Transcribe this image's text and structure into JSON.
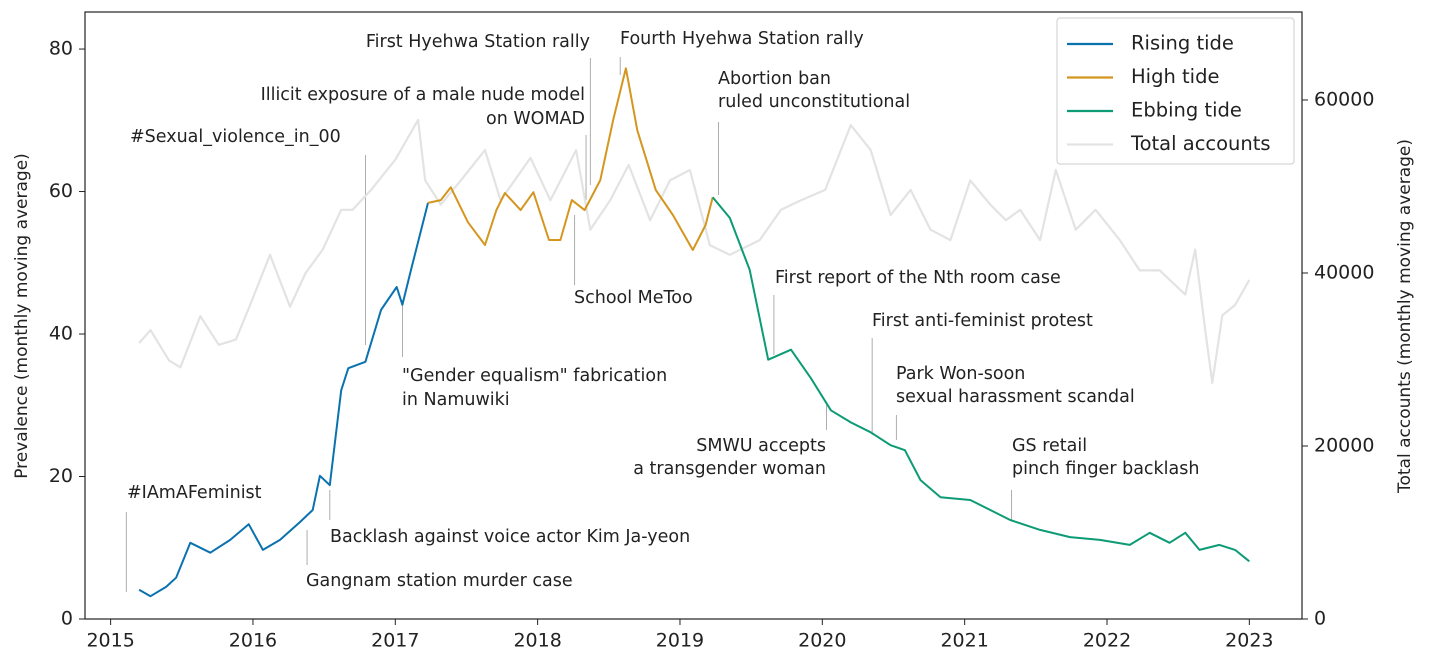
{
  "chart_data": {
    "type": "line",
    "ylabel": "Prevalence (monthly moving average)",
    "y2label": "Total accounts (monthly moving average)",
    "xlim": [
      2014.82,
      2023.37
    ],
    "xticks": [
      2015,
      2016,
      2017,
      2018,
      2019,
      2020,
      2021,
      2022,
      2023
    ],
    "ylim": [
      0,
      85.2
    ],
    "yticks": [
      0,
      20,
      40,
      60,
      80
    ],
    "y2lim": [
      0,
      70170
    ],
    "y2ticks": [
      0,
      20000,
      40000,
      60000
    ],
    "legend": "upper right",
    "grid": false,
    "series": [
      {
        "name": "Total accounts",
        "color": "#e3e3e3",
        "axis": "y2",
        "x": [
          2015.2,
          2015.28,
          2015.41,
          2015.49,
          2015.63,
          2015.76,
          2015.88,
          2015.98,
          2016.12,
          2016.26,
          2016.37,
          2016.49,
          2016.62,
          2016.7,
          2016.83,
          2017.0,
          2017.16,
          2017.21,
          2017.32,
          2017.46,
          2017.63,
          2017.74,
          2017.95,
          2018.09,
          2018.27,
          2018.37,
          2018.51,
          2018.64,
          2018.79,
          2018.93,
          2019.07,
          2019.21,
          2019.35,
          2019.56,
          2019.71,
          2019.85,
          2020.02,
          2020.2,
          2020.34,
          2020.48,
          2020.62,
          2020.76,
          2020.9,
          2021.04,
          2021.18,
          2021.29,
          2021.39,
          2021.53,
          2021.64,
          2021.78,
          2021.92,
          2022.09,
          2022.23,
          2022.37,
          2022.55,
          2022.62,
          2022.69,
          2022.74,
          2022.81,
          2022.9,
          2023.0
        ],
        "values": [
          31900,
          33400,
          29900,
          29100,
          35000,
          31700,
          32300,
          36300,
          42100,
          36100,
          40000,
          42700,
          47300,
          47300,
          49600,
          53100,
          57700,
          50700,
          47900,
          50700,
          54200,
          48400,
          53300,
          48400,
          54200,
          45000,
          48400,
          52500,
          46100,
          50700,
          51900,
          43200,
          42100,
          43800,
          47300,
          48400,
          49600,
          57100,
          54200,
          46700,
          49600,
          45000,
          43800,
          50700,
          47900,
          46100,
          47300,
          43800,
          51900,
          45000,
          47300,
          43800,
          40300,
          40300,
          37500,
          42700,
          33400,
          27300,
          35100,
          36300,
          39200
        ]
      },
      {
        "name": "Rising tide",
        "color": "#0b72b0",
        "x": [
          2015.2,
          2015.28,
          2015.39,
          2015.46,
          2015.56,
          2015.7,
          2015.84,
          2015.97,
          2016.07,
          2016.19,
          2016.33,
          2016.42,
          2016.47,
          2016.54,
          2016.62,
          2016.67,
          2016.79,
          2016.9,
          2017.01,
          2017.05,
          2017.11,
          2017.23
        ],
        "values": [
          4.1,
          3.2,
          4.5,
          5.8,
          10.7,
          9.3,
          11.1,
          13.3,
          9.7,
          11.1,
          13.6,
          15.3,
          20.1,
          18.8,
          32.1,
          35.2,
          36.1,
          43.4,
          46.6,
          44.1,
          49.0,
          58.4
        ]
      },
      {
        "name": "High tide",
        "color": "#d4961f",
        "x": [
          2017.23,
          2017.32,
          2017.39,
          2017.51,
          2017.63,
          2017.71,
          2017.77,
          2017.88,
          2017.97,
          2018.08,
          2018.16,
          2018.24,
          2018.33,
          2018.44,
          2018.53,
          2018.62,
          2018.7,
          2018.83,
          2018.95,
          2019.09,
          2019.18,
          2019.23
        ],
        "values": [
          58.4,
          58.8,
          60.6,
          55.7,
          52.5,
          57.4,
          59.8,
          57.4,
          59.9,
          53.2,
          53.2,
          58.8,
          57.4,
          61.6,
          70.0,
          77.3,
          68.6,
          60.2,
          56.7,
          51.8,
          55.3,
          59.2
        ]
      },
      {
        "name": "Ebbing tide",
        "color": "#0c9b74",
        "x": [
          2019.23,
          2019.35,
          2019.49,
          2019.62,
          2019.78,
          2019.92,
          2020.06,
          2020.2,
          2020.34,
          2020.48,
          2020.58,
          2020.69,
          2020.83,
          2021.04,
          2021.18,
          2021.32,
          2021.53,
          2021.74,
          2021.95,
          2022.16,
          2022.3,
          2022.44,
          2022.55,
          2022.65,
          2022.79,
          2022.9,
          2023.0
        ],
        "values": [
          59.2,
          56.3,
          49.0,
          36.4,
          37.8,
          33.8,
          29.3,
          27.6,
          26.2,
          24.4,
          23.7,
          19.5,
          17.1,
          16.7,
          15.3,
          13.9,
          12.5,
          11.5,
          11.1,
          10.4,
          12.1,
          10.7,
          12.1,
          9.7,
          10.4,
          9.7,
          8.1
        ]
      }
    ],
    "legend_order": [
      "Rising tide",
      "High tide",
      "Ebbing tide",
      "Total accounts"
    ],
    "annotations": [
      {
        "text": [
          "#IAmAFeminist"
        ],
        "x": 2015.11
      },
      {
        "text": [
          "Gangnam station murder case"
        ],
        "x": 2016.38
      },
      {
        "text": [
          "Backlash against voice actor Kim Ja-yeon"
        ],
        "x": 2016.54
      },
      {
        "text": [
          "#Sexual_violence_in_00"
        ],
        "x": 2016.79
      },
      {
        "text": [
          "\"Gender equalism\" fabrication",
          "in Namuwiki"
        ],
        "x": 2017.05
      },
      {
        "text": [
          "Illicit exposure of a male nude model",
          "on WOMAD"
        ],
        "x": 2018.34
      },
      {
        "text": [
          "First Hyehwa Station rally"
        ],
        "x": 2018.37
      },
      {
        "text": [
          "School MeToo"
        ],
        "x": 2018.26
      },
      {
        "text": [
          "Fourth Hyehwa Station rally"
        ],
        "x": 2018.58
      },
      {
        "text": [
          "Abortion ban",
          "ruled unconstitutional"
        ],
        "x": 2019.27
      },
      {
        "text": [
          "First report of the Nth room case"
        ],
        "x": 2019.66
      },
      {
        "text": [
          "First anti-feminist protest"
        ],
        "x": 2020.35
      },
      {
        "text": [
          "SMWU accepts",
          "a transgender woman"
        ],
        "x": 2020.03
      },
      {
        "text": [
          "Park Won-soon",
          "sexual harassment scandal"
        ],
        "x": 2020.52
      },
      {
        "text": [
          "GS retail",
          "pinch finger backlash"
        ],
        "x": 2021.33
      }
    ]
  }
}
